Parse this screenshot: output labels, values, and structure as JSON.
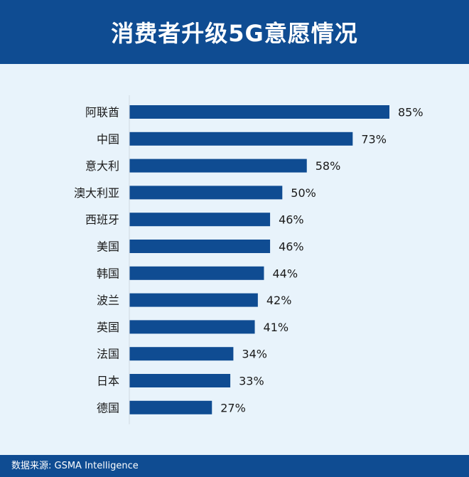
{
  "header": {
    "title": "消费者升级5G意愿情况"
  },
  "footer": {
    "source": "数据来源: GSMA Intelligence"
  },
  "colors": {
    "header_bg": "#0f4c92",
    "bar": "#0f4c92",
    "background": "#e8f3fb",
    "text": "#1a1a1a"
  },
  "chart_data": {
    "type": "bar",
    "orientation": "horizontal",
    "title": "消费者升级5G意愿情况",
    "xlabel": "",
    "ylabel": "",
    "categories": [
      "阿联酋",
      "中国",
      "意大利",
      "澳大利亚",
      "西班牙",
      "美国",
      "韩国",
      "波兰",
      "英国",
      "法国",
      "日本",
      "德国"
    ],
    "values": [
      85,
      73,
      58,
      50,
      46,
      46,
      44,
      42,
      41,
      34,
      33,
      27
    ],
    "value_labels": [
      "85%",
      "73%",
      "58%",
      "50%",
      "46%",
      "46%",
      "44%",
      "42%",
      "41%",
      "34%",
      "33%",
      "27%"
    ],
    "unit": "%",
    "xlim": [
      0,
      85
    ],
    "grid": false,
    "legend": "none"
  }
}
